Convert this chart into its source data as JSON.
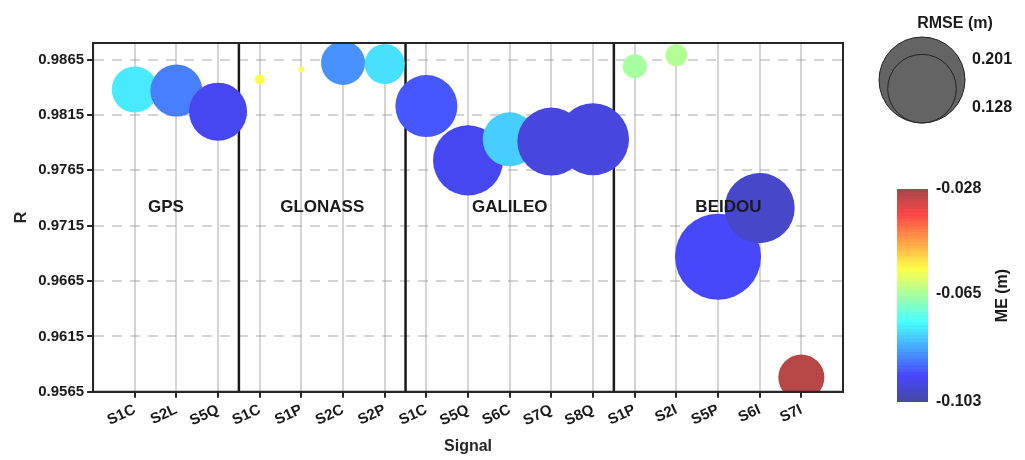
{
  "chart_data": {
    "type": "bubble",
    "xlabel": "Signal",
    "ylabel": "R",
    "categories": [
      "S1C",
      "S2L",
      "S5Q",
      "S1C",
      "S1P",
      "S2C",
      "S2P",
      "S1C",
      "S5Q",
      "S6C",
      "S7Q",
      "S8Q",
      "S1P",
      "S2I",
      "S5P",
      "S6I",
      "S7I"
    ],
    "values": [
      0.9838,
      0.9837,
      0.9818,
      0.9847,
      0.9856,
      0.9862,
      0.9861,
      0.9823,
      0.9774,
      0.9793,
      0.9791,
      0.9793,
      0.9859,
      0.9869,
      0.9687,
      0.9731,
      0.9578
    ],
    "sizes": [
      0.0575,
      0.0735,
      0.0914,
      0.0027,
      0.001,
      0.0526,
      0.0435,
      0.1045,
      0.1332,
      0.0792,
      0.1257,
      0.1409,
      0.0157,
      0.0132,
      0.201,
      0.1332,
      0.0575
    ],
    "cvalues": [
      -0.077,
      -0.088,
      -0.095,
      -0.056,
      -0.056,
      -0.086,
      -0.078,
      -0.092,
      -0.095,
      -0.08,
      -0.097,
      -0.097,
      -0.065,
      -0.064,
      -0.094,
      -0.099,
      -0.03
    ],
    "ylim": [
      0.9565,
      0.988
    ],
    "yticks": [
      0.9565,
      0.9615,
      0.9665,
      0.9715,
      0.9765,
      0.9815,
      0.9865
    ],
    "grid": true,
    "annotations": [
      "GPS",
      "GLONASS",
      "GALILEO",
      "BEIDOU"
    ],
    "legend_title": "RMSE (m)",
    "size_legend": [
      0.201,
      0.128
    ],
    "clabel": "ME (m)",
    "clim": [
      -0.103,
      -0.028
    ],
    "cticks": [
      -0.028,
      -0.065,
      -0.103
    ]
  }
}
